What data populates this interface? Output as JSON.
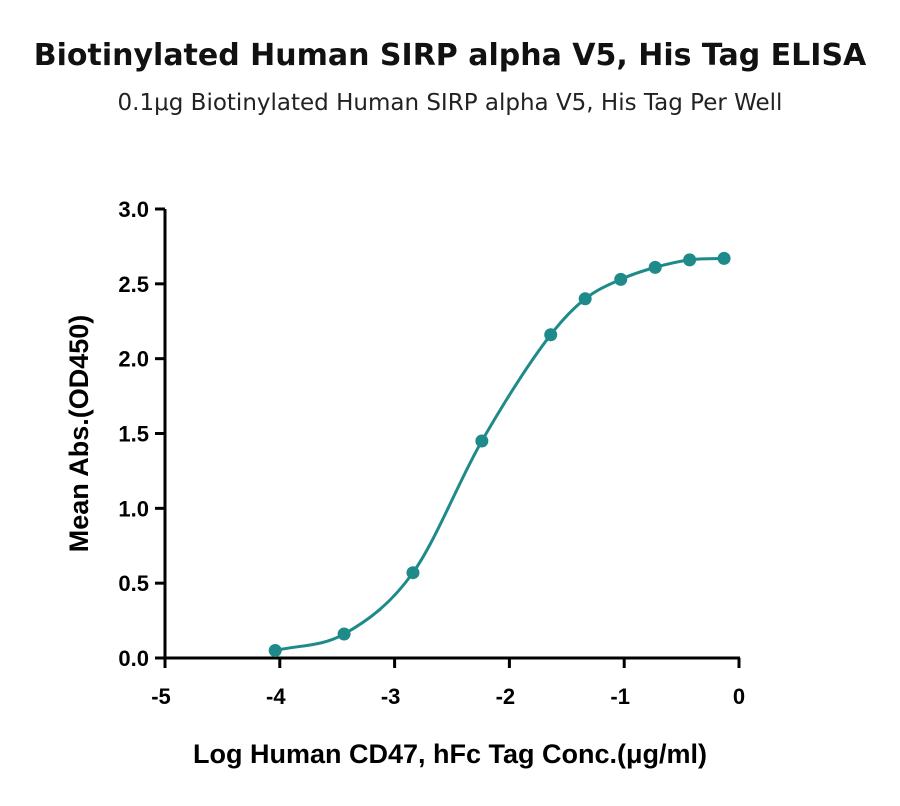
{
  "title": "Biotinylated Human SIRP alpha V5, His Tag ELISA",
  "subtitle": "0.1μg Biotinylated Human SIRP alpha V5, His Tag Per Well",
  "colors": {
    "series": "#1f8a8a",
    "axis": "#000000"
  },
  "chart_data": {
    "type": "scatter",
    "title": "Biotinylated Human SIRP alpha V5, His Tag ELISA",
    "subtitle": "0.1μg Biotinylated Human SIRP alpha V5, His Tag Per Well",
    "xlabel": "Log Human CD47, hFc Tag Conc.(μg/ml)",
    "ylabel": "Mean Abs.(OD450)",
    "xlim": [
      -5,
      0
    ],
    "ylim": [
      0,
      3
    ],
    "xticks": [
      "-5",
      "-4",
      "-3",
      "-2",
      "-1",
      "0"
    ],
    "yticks": [
      "0.0",
      "0.5",
      "1.0",
      "1.5",
      "2.0",
      "2.5",
      "3.0"
    ],
    "grid": false,
    "series": [
      {
        "x": [
          -4.04,
          -3.44,
          -2.84,
          -2.24,
          -1.64,
          -1.34,
          -1.03,
          -0.73,
          -0.43,
          -0.13
        ],
        "y": [
          0.05,
          0.16,
          0.57,
          1.45,
          2.16,
          2.4,
          2.53,
          2.61,
          2.66,
          2.67
        ],
        "fit": "four-parameter logistic curve"
      }
    ]
  }
}
